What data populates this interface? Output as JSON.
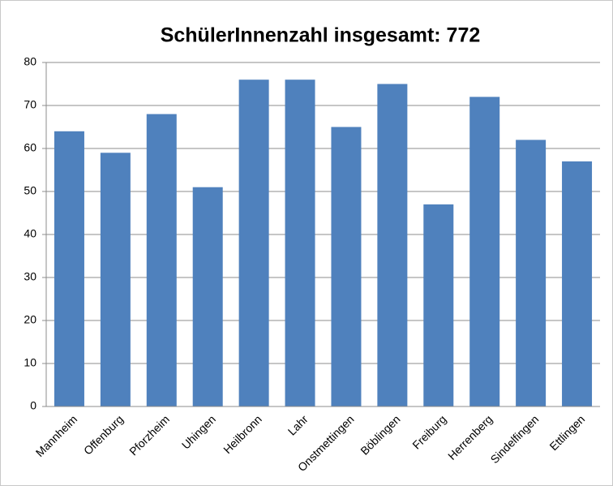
{
  "chart_data": {
    "type": "bar",
    "title": "SchülerInnenzahl insgesamt: 772",
    "categories": [
      "Mannheim",
      "Offenburg",
      "Pforzheim",
      "Uhingen",
      "Heilbronn",
      "Lahr",
      "Onstmettingen",
      "Böblingen",
      "Freiburg",
      "Herrenberg",
      "Sindelfingen",
      "Ettlingen"
    ],
    "values": [
      64,
      59,
      68,
      51,
      76,
      76,
      65,
      75,
      47,
      72,
      62,
      57
    ],
    "color": "#4f81bd",
    "ylim": [
      0,
      80
    ],
    "yticks": [
      0,
      10,
      20,
      30,
      40,
      50,
      60,
      70,
      80
    ],
    "grid": true
  }
}
